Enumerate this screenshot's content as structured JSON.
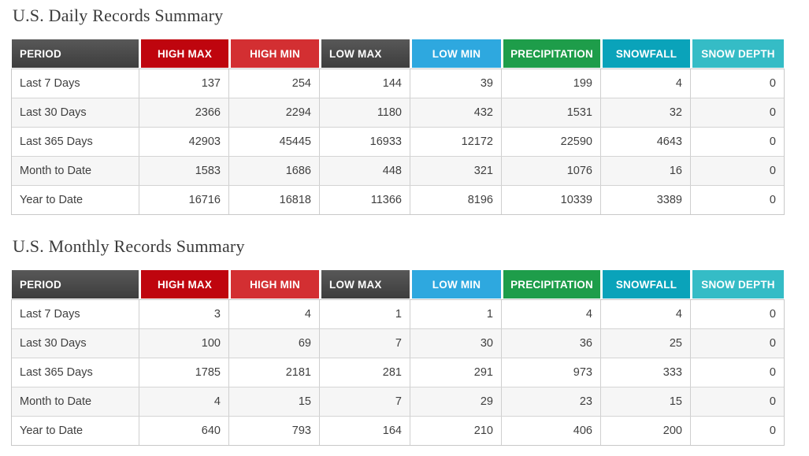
{
  "columns": [
    {
      "label": "PERIOD",
      "color": "#484848"
    },
    {
      "label": "HIGH MAX",
      "color": "#bf050e"
    },
    {
      "label": "HIGH MIN",
      "color": "#d32f32"
    },
    {
      "label": "LOW MAX",
      "color": "#484848"
    },
    {
      "label": "LOW MIN",
      "color": "#2ea8df"
    },
    {
      "label": "PRECIPITATION",
      "color": "#1e9d4a"
    },
    {
      "label": "SNOWFALL",
      "color": "#0aa3ba"
    },
    {
      "label": "SNOW DEPTH",
      "color": "#35bcc6"
    }
  ],
  "tables": [
    {
      "title": "U.S. Daily Records Summary",
      "rows": [
        {
          "label": "Last 7 Days",
          "values": [
            137,
            254,
            144,
            39,
            199,
            4,
            0
          ]
        },
        {
          "label": "Last 30 Days",
          "values": [
            2366,
            2294,
            1180,
            432,
            1531,
            32,
            0
          ]
        },
        {
          "label": "Last 365 Days",
          "values": [
            42903,
            45445,
            16933,
            12172,
            22590,
            4643,
            0
          ]
        },
        {
          "label": "Month to Date",
          "values": [
            1583,
            1686,
            448,
            321,
            1076,
            16,
            0
          ]
        },
        {
          "label": "Year to Date",
          "values": [
            16716,
            16818,
            11366,
            8196,
            10339,
            3389,
            0
          ]
        }
      ]
    },
    {
      "title": "U.S. Monthly Records Summary",
      "rows": [
        {
          "label": "Last 7 Days",
          "values": [
            3,
            4,
            1,
            1,
            4,
            4,
            0
          ]
        },
        {
          "label": "Last 30 Days",
          "values": [
            100,
            69,
            7,
            30,
            36,
            25,
            0
          ]
        },
        {
          "label": "Last 365 Days",
          "values": [
            1785,
            2181,
            281,
            291,
            973,
            333,
            0
          ]
        },
        {
          "label": "Month to Date",
          "values": [
            4,
            15,
            7,
            29,
            23,
            15,
            0
          ]
        },
        {
          "label": "Year to Date",
          "values": [
            640,
            793,
            164,
            210,
            406,
            200,
            0
          ]
        }
      ]
    }
  ]
}
